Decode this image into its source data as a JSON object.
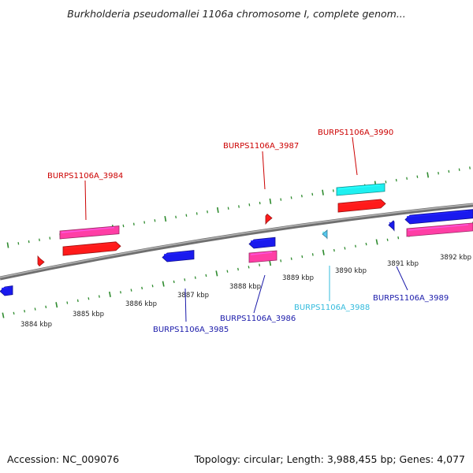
{
  "title": "Burkholderia pseudomallei 1106a chromosome I, complete genom...",
  "footer": {
    "accession": "Accession: NC_009076",
    "stats": "Topology: circular; Length: 3,988,455 bp; Genes: 4,077"
  },
  "colors": {
    "backbone": "#8a8a8a",
    "tick": "#2e8b2e",
    "forward_label": "#cc0000",
    "reverse_label": "#1a1aaa",
    "rna_label": "#33bbdd",
    "gene_red": "#ff1a1a",
    "gene_pink": "#ff3ea5",
    "gene_cyan": "#1ef0f0",
    "gene_blue": "#1a1aee",
    "gene_lightblue": "#55c8f0"
  },
  "scale": {
    "unit": "kbp",
    "labels": [
      "3884 kbp",
      "3885 kbp",
      "3886 kbp",
      "3887 kbp",
      "3888 kbp",
      "3889 kbp",
      "3890 kbp",
      "3891 kbp",
      "3892 kbp"
    ]
  },
  "gene_labels": [
    {
      "text": "BURPS1106A_3984",
      "strand": "forward"
    },
    {
      "text": "BURPS1106A_3987",
      "strand": "forward"
    },
    {
      "text": "BURPS1106A_3990",
      "strand": "forward"
    },
    {
      "text": "BURPS1106A_3985",
      "strand": "reverse"
    },
    {
      "text": "BURPS1106A_3986",
      "strand": "reverse"
    },
    {
      "text": "BURPS1106A_3988",
      "strand": "rna"
    },
    {
      "text": "BURPS1106A_3989",
      "strand": "reverse"
    }
  ]
}
